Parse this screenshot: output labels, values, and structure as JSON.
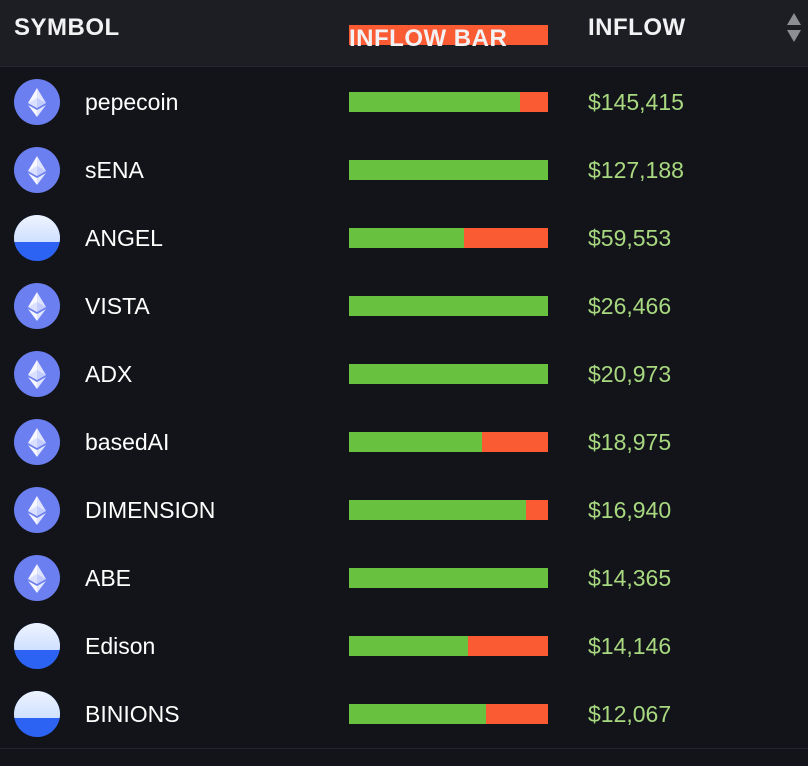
{
  "header": {
    "symbol_label": "SYMBOL",
    "bar_label": "INFLOW BAR",
    "inflow_label": "INFLOW",
    "sort_icon": "sort-up-down-icon"
  },
  "colors": {
    "inflow_positive": "#68c23f",
    "outflow_negative": "#fa5b33",
    "amount_text": "#a8d880",
    "eth_icon_bg": "#6b7ff0",
    "token_icon_blue": "#2d63f2"
  },
  "rows": [
    {
      "name": "pepecoin",
      "icon": "ethereum-icon",
      "inflow_ratio": 0.86,
      "amount": "$145,415"
    },
    {
      "name": "sENA",
      "icon": "ethereum-icon",
      "inflow_ratio": 1.0,
      "amount": "$127,188"
    },
    {
      "name": "ANGEL",
      "icon": "token-icon",
      "inflow_ratio": 0.58,
      "amount": "$59,553"
    },
    {
      "name": "VISTA",
      "icon": "ethereum-icon",
      "inflow_ratio": 1.0,
      "amount": "$26,466"
    },
    {
      "name": "ADX",
      "icon": "ethereum-icon",
      "inflow_ratio": 1.0,
      "amount": "$20,973"
    },
    {
      "name": "basedAI",
      "icon": "ethereum-icon",
      "inflow_ratio": 0.67,
      "amount": "$18,975"
    },
    {
      "name": "DIMENSION",
      "icon": "ethereum-icon",
      "inflow_ratio": 0.89,
      "amount": "$16,940"
    },
    {
      "name": "ABE",
      "icon": "ethereum-icon",
      "inflow_ratio": 1.0,
      "amount": "$14,365"
    },
    {
      "name": "Edison",
      "icon": "token-icon",
      "inflow_ratio": 0.6,
      "amount": "$14,146"
    },
    {
      "name": "BINIONS",
      "icon": "token-icon",
      "inflow_ratio": 0.69,
      "amount": "$12,067"
    }
  ]
}
